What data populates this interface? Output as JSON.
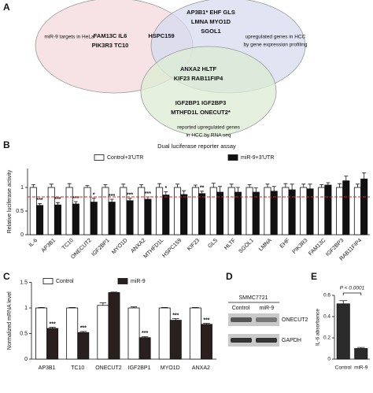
{
  "venn": {
    "panel": "A",
    "sets": [
      {
        "label": [
          "miR-9 targets in HeLa"
        ],
        "color": "#f4d9dc"
      },
      {
        "label": [
          "upregulated genes in HCC",
          "by gene expression profiling"
        ],
        "color": "#d6dbef"
      },
      {
        "label": [
          "reported upregulated genes",
          "in HCC by RNA seq"
        ],
        "color": "#dcecd3"
      }
    ],
    "regions": [
      {
        "lines": [
          "FAM13C  IL6",
          "PIK3R3  TC10"
        ]
      },
      {
        "lines": [
          "HSPC159"
        ]
      },
      {
        "lines": [
          "AP3B1*  EHF  GLS",
          "LMNA  MYO1D",
          "SGOL1"
        ]
      },
      {
        "lines": [
          "ANXA2  HLTF",
          "KIF23  RAB11FIP4"
        ]
      },
      {
        "lines": [
          "IGF2BP1  IGF2BP3",
          "MTHFD1L  ONECUT2*"
        ]
      }
    ]
  },
  "blot": {
    "panel": "D",
    "cell_line": "SMMC7721",
    "lanes": [
      "Control",
      "miR-9"
    ],
    "bands": [
      "ONECUT2",
      "GAPDH"
    ]
  },
  "chart_data": [
    {
      "panel": "B",
      "type": "bar",
      "title": "Dual luciferase reporter assay",
      "y_label": "Relative luciferase activity",
      "categories": [
        "IL-6",
        "AP3B1",
        "TC10",
        "ONECUT2",
        "IGF2BP1",
        "MYO1D",
        "ANXA2",
        "MTHFD1L",
        "HSPC159",
        "KIF23",
        "GLS",
        "HLTF",
        "SGOL1",
        "LMNA",
        "EHF",
        "PIK3R3",
        "FAM13C",
        "IGF2BP3",
        "RAB11FIP4"
      ],
      "series": [
        {
          "name": "Control+3'UTR",
          "color": "#ffffff",
          "values": [
            1,
            1,
            1,
            1,
            1,
            1,
            1,
            1,
            1,
            1,
            1,
            1,
            1,
            1,
            1,
            1,
            1,
            1,
            1
          ],
          "errors": [
            0.06,
            0.07,
            0.08,
            0.04,
            0.06,
            0.07,
            0.06,
            0.08,
            0.07,
            0.05,
            0.09,
            0.07,
            0.06,
            0.07,
            0.08,
            0.07,
            0.06,
            0.08,
            0.07
          ]
        },
        {
          "name": "miR-9+3'UTR",
          "color": "#111111",
          "values": [
            0.62,
            0.63,
            0.65,
            0.69,
            0.69,
            0.72,
            0.75,
            0.84,
            0.85,
            0.87,
            0.9,
            0.9,
            0.9,
            0.92,
            0.95,
            0.97,
            1.05,
            1.14,
            1.18
          ],
          "errors": [
            0.04,
            0.05,
            0.05,
            0.08,
            0.06,
            0.05,
            0.05,
            0.07,
            0.08,
            0.05,
            0.12,
            0.1,
            0.09,
            0.1,
            0.12,
            0.1,
            0.05,
            0.1,
            0.13
          ],
          "significance": [
            "***",
            "***",
            "***",
            "*",
            "***",
            "***",
            "***",
            "*",
            null,
            "**",
            null,
            null,
            null,
            null,
            null,
            null,
            null,
            null,
            null
          ]
        }
      ],
      "ylim": [
        0,
        1.4
      ],
      "yticks": [
        0,
        0.5,
        1
      ],
      "reference_line": {
        "value": 0.8,
        "color": "#e02020"
      },
      "label_rotation": -45
    },
    {
      "panel": "C",
      "type": "bar",
      "y_label": "Normalized mRNA level",
      "categories": [
        "AP3B1",
        "TC10",
        "ONECUT2",
        "IGF2BP1",
        "MYO1D",
        "ANXA2"
      ],
      "series": [
        {
          "name": "Control",
          "color": "#ffffff",
          "values": [
            1,
            1,
            1.05,
            1,
            1,
            1
          ],
          "errors": [
            0.01,
            0.01,
            0.05,
            0.02,
            0.01,
            0.01
          ]
        },
        {
          "name": "miR-9",
          "color": "#2a1f1f",
          "values": [
            0.6,
            0.52,
            1.3,
            0.42,
            0.76,
            0.68
          ],
          "errors": [
            0.02,
            0.02,
            0.01,
            0.02,
            0.03,
            0.02
          ],
          "significance": [
            "***",
            "***",
            null,
            "***",
            "***",
            "***"
          ]
        }
      ],
      "ylim": [
        0,
        1.5
      ],
      "yticks": [
        0,
        0.5,
        1,
        1.5
      ]
    },
    {
      "panel": "E",
      "type": "bar",
      "y_label": "IL-6 absorbance",
      "categories": [
        "Control",
        "miR-9"
      ],
      "values": [
        0.52,
        0.1
      ],
      "errors": [
        0.03,
        0.01
      ],
      "color": "#2b2b2b",
      "annotation": "P < 0.0001",
      "ylim": [
        0,
        0.6
      ],
      "yticks": [
        0,
        0.2,
        0.4,
        0.6
      ]
    }
  ]
}
